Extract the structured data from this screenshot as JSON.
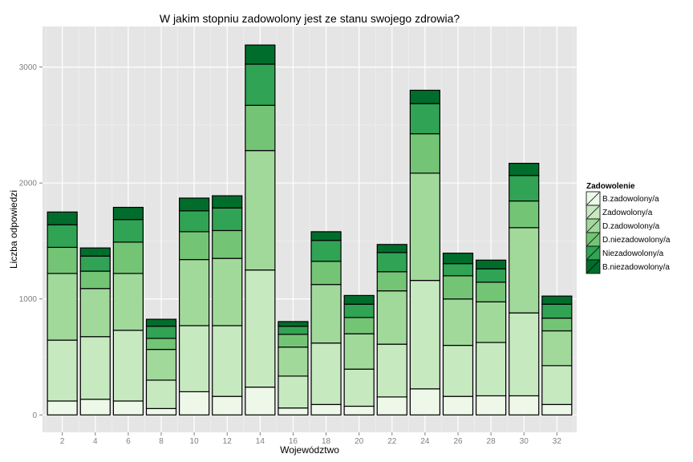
{
  "chart_data": {
    "type": "bar",
    "stacked": true,
    "title": "W jakim stopniu zadowolony jest ze stanu swojego zdrowia?",
    "xlabel": "Województwo",
    "ylabel": "Liczba odpowiedzi",
    "x": [
      2,
      4,
      6,
      8,
      10,
      12,
      14,
      16,
      18,
      20,
      22,
      24,
      26,
      28,
      30,
      32
    ],
    "x_ticks": [
      "2",
      "4",
      "6",
      "8",
      "10",
      "12",
      "14",
      "16",
      "18",
      "20",
      "22",
      "24",
      "26",
      "28",
      "30",
      "32"
    ],
    "y_ticks": [
      0,
      1000,
      2000,
      3000
    ],
    "ylim": [
      -150,
      3350
    ],
    "xlim": [
      0.8,
      33.2
    ],
    "grid": true,
    "legend_position": "right",
    "legend_title": "Zadowolenie",
    "series": [
      {
        "name": "B.zadowolony/a",
        "color": "#edf8e9",
        "values": [
          120,
          135,
          120,
          55,
          200,
          160,
          240,
          60,
          90,
          75,
          155,
          225,
          160,
          165,
          165,
          90
        ]
      },
      {
        "name": "Zadowolony/a",
        "color": "#c7e9c0",
        "values": [
          525,
          540,
          610,
          245,
          570,
          610,
          1010,
          275,
          530,
          320,
          455,
          935,
          440,
          460,
          715,
          335
        ]
      },
      {
        "name": "D.zadowolony/a",
        "color": "#a1d99b",
        "values": [
          575,
          415,
          490,
          265,
          570,
          580,
          1030,
          250,
          505,
          305,
          460,
          925,
          400,
          350,
          735,
          300
        ]
      },
      {
        "name": "D.niezadowolony/a",
        "color": "#74c476",
        "values": [
          225,
          150,
          270,
          95,
          240,
          240,
          390,
          110,
          200,
          140,
          165,
          340,
          200,
          170,
          230,
          110
        ]
      },
      {
        "name": "Niezadowolony/a",
        "color": "#31a354",
        "values": [
          195,
          130,
          195,
          105,
          180,
          195,
          355,
          70,
          180,
          115,
          165,
          260,
          105,
          115,
          220,
          120
        ]
      },
      {
        "name": "B.niezadowolony/a",
        "color": "#006d2c",
        "values": [
          110,
          70,
          105,
          60,
          110,
          105,
          165,
          40,
          75,
          75,
          70,
          115,
          90,
          75,
          105,
          70
        ]
      }
    ]
  }
}
